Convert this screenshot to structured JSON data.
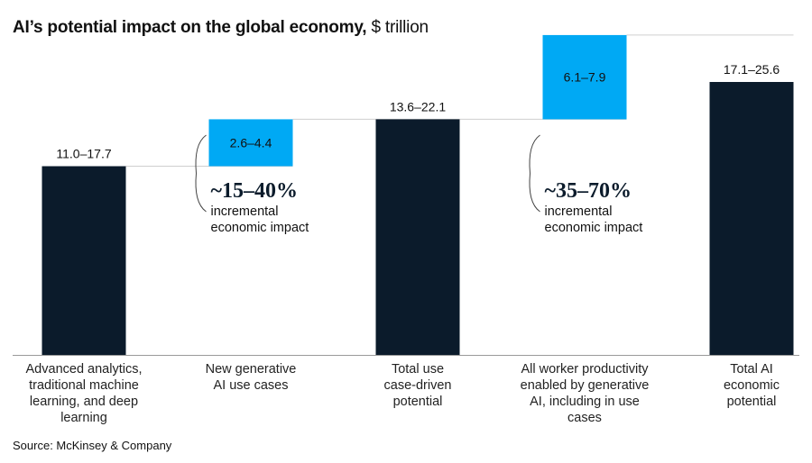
{
  "title": {
    "bold": "AI’s potential impact on the global economy,",
    "unit": "$ trillion"
  },
  "source": "Source: McKinsey & Company",
  "colors": {
    "dark": "#0b1b2b",
    "accent": "#00a9f4",
    "connector": "#cfcfcf"
  },
  "chart_data": {
    "type": "bar",
    "subtype": "waterfall",
    "categories": [
      "Advanced analytics, traditional machine learning, and deep learning",
      "New generative AI use cases",
      "Total use case-driven potential",
      "All worker productivity enabled by generative AI, including in use cases",
      "Total AI economic potential"
    ],
    "category_lines": [
      [
        "Advanced analytics,",
        "traditional machine",
        "learning, and deep",
        "learning"
      ],
      [
        "New generative",
        "AI use cases"
      ],
      [
        "Total use",
        "case-driven",
        "potential"
      ],
      [
        "All worker productivity",
        "enabled by generative",
        "AI, including in use",
        "cases"
      ],
      [
        "Total AI",
        "economic",
        "potential"
      ]
    ],
    "value_labels": [
      "11.0–17.7",
      "2.6–4.4",
      "13.6–22.1",
      "6.1–7.9",
      "17.1–25.6"
    ],
    "bars": [
      {
        "kind": "total",
        "base": 0,
        "value": 17.7
      },
      {
        "kind": "increment",
        "base": 17.7,
        "value": 4.4
      },
      {
        "kind": "total",
        "base": 0,
        "value": 22.1
      },
      {
        "kind": "increment",
        "base": 22.1,
        "value": 7.9
      },
      {
        "kind": "total",
        "base": 0,
        "value": 25.6
      }
    ],
    "ylim": [
      0,
      25.6
    ],
    "annotations": [
      {
        "after_bar": 1,
        "big": "~15–40%",
        "lines": [
          "incremental",
          "economic impact"
        ]
      },
      {
        "after_bar": 3,
        "big": "~35–70%",
        "lines": [
          "incremental",
          "economic impact"
        ]
      }
    ]
  }
}
